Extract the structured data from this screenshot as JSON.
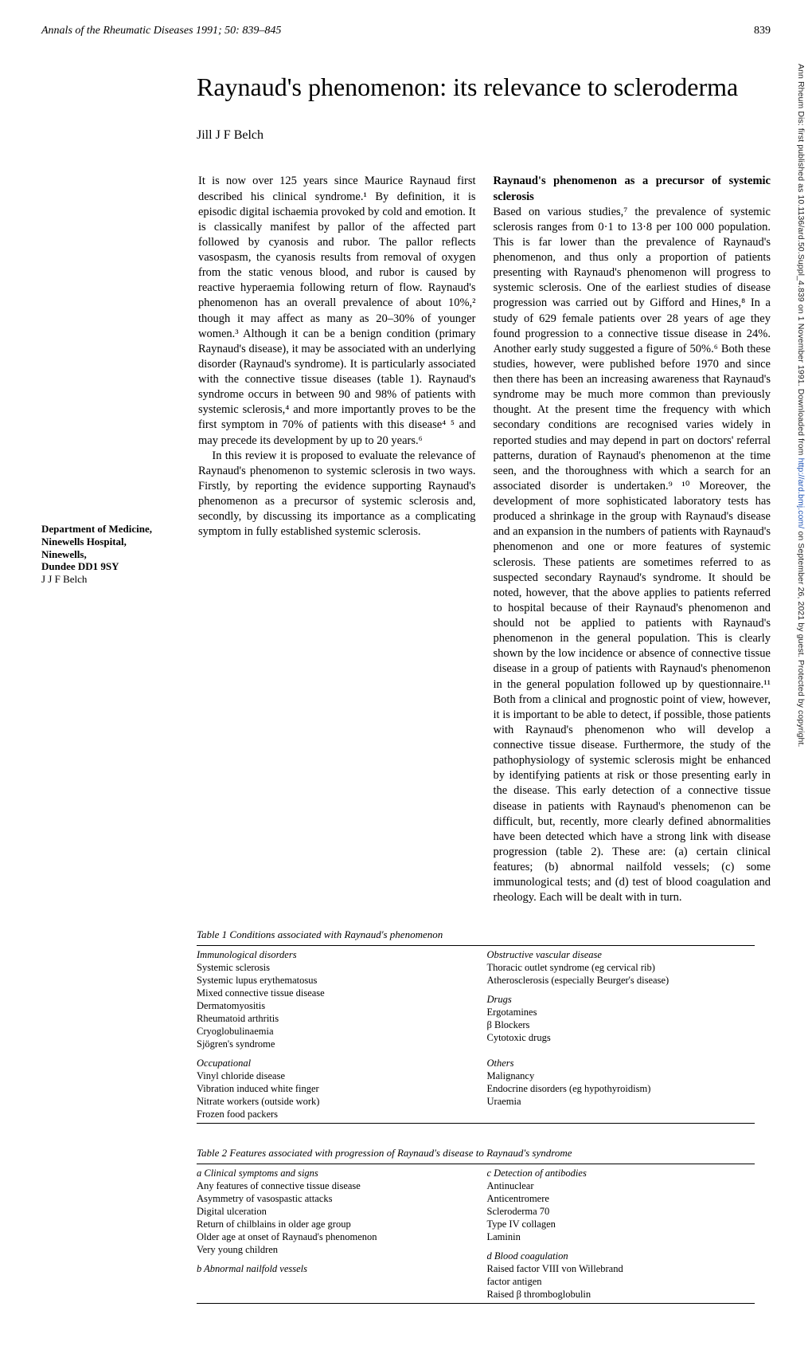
{
  "header": {
    "journal": "Annals of the Rheumatic Diseases 1991; 50: 839–845",
    "page": "839"
  },
  "title": "Raynaud's phenomenon: its relevance to scleroderma",
  "author": "Jill J F Belch",
  "sidebar": {
    "affil_l1": "Department of Medicine,",
    "affil_l2": "Ninewells Hospital,",
    "affil_l3": "Ninewells,",
    "affil_l4": "Dundee DD1 9SY",
    "affil_l5": "J J F Belch"
  },
  "left_col": {
    "intro": "It is now over 125 years since Maurice Raynaud first described his clinical syndrome.¹ By definition, it is episodic digital ischaemia provoked by cold and emotion. It is classically manifest by pallor of the affected part followed by cyanosis and rubor. The pallor reflects vasospasm, the cyanosis results from removal of oxygen from the static venous blood, and rubor is caused by reactive hyperaemia following return of flow. Raynaud's phenomenon has an overall prevalence of about 10%,² though it may affect as many as 20–30% of younger women.³ Although it can be a benign condition (primary Raynaud's disease), it may be associated with an underlying disorder (Raynaud's syndrome). It is particularly associated with the connective tissue diseases (table 1). Raynaud's syndrome occurs in between 90 and 98% of patients with systemic sclerosis,⁴ and more importantly proves to be the first symptom in 70% of patients with this disease⁴ ⁵ and may precede its development by up to 20 years.⁶",
    "intro2": "In this review it is proposed to evaluate the relevance of Raynaud's phenomenon to systemic sclerosis in two ways. Firstly, by reporting the evidence supporting Raynaud's phenomenon as a precursor of systemic sclerosis and, secondly, by discussing its importance as a complicating symptom in fully established systemic sclerosis."
  },
  "right_col": {
    "head1": "Raynaud's phenomenon as a precursor of systemic sclerosis",
    "p1": "Based on various studies,⁷ the prevalence of systemic sclerosis ranges from 0·1 to 13·8 per 100 000 population. This is far lower than the prevalence of Raynaud's phenomenon, and thus only a proportion of patients presenting with Raynaud's phenomenon will progress to systemic sclerosis. One of the earliest studies of disease progression was carried out by Gifford and Hines,⁸ In a study of 629 female patients over 28 years of age they found progression to a connective tissue disease in 24%. Another early study suggested a figure of 50%.⁶ Both these studies, however, were published before 1970 and since then there has been an increasing awareness that Raynaud's syndrome may be much more common than previously thought. At the present time the frequency with which secondary conditions are recognised varies widely in reported studies and may depend in part on doctors' referral patterns, duration of Raynaud's phenomenon at the time seen, and the thoroughness with which a search for an associated disorder is undertaken.⁹ ¹⁰ Moreover, the development of more sophisticated laboratory tests has produced a shrinkage in the group with Raynaud's disease and an expansion in the numbers of patients with Raynaud's phenomenon and one or more features of systemic sclerosis. These patients are sometimes referred to as suspected secondary Raynaud's syndrome. It should be noted, however, that the above applies to patients referred to hospital because of their Raynaud's phenomenon and should not be applied to patients with Raynaud's phenomenon in the general population. This is clearly shown by the low incidence or absence of connective tissue disease in a group of patients with Raynaud's phenomenon in the general population followed up by questionnaire.¹¹ Both from a clinical and prognostic point of view, however, it is important to be able to detect, if possible, those patients with Raynaud's phenomenon who will develop a connective tissue disease. Furthermore, the study of the pathophysiology of systemic sclerosis might be enhanced by identifying patients at risk or those presenting early in the disease. This early detection of a connective tissue disease in patients with Raynaud's phenomenon can be difficult, but, recently, more clearly defined abnormalities have been detected which have a strong link with disease progression (table 2). These are: (a) certain clinical features; (b) abnormal nailfold vessels; (c) some immunological tests; and (d) test of blood coagulation and rheology. Each will be dealt with in turn."
  },
  "table1": {
    "caption": "Table 1   Conditions associated with Raynaud's phenomenon",
    "col1": {
      "h1": "Immunological disorders",
      "i1": "Systemic sclerosis",
      "i2": "Systemic lupus erythematosus",
      "i3": "Mixed connective tissue disease",
      "i4": "Dermatomyositis",
      "i5": "Rheumatoid arthritis",
      "i6": "Cryoglobulinaemia",
      "i7": "Sjögren's syndrome",
      "h2": "Occupational",
      "j1": "Vinyl chloride disease",
      "j2": "Vibration induced white finger",
      "j3": "Nitrate workers (outside work)",
      "j4": "Frozen food packers"
    },
    "col2": {
      "h1": "Obstructive vascular disease",
      "i1": "Thoracic outlet syndrome (eg cervical rib)",
      "i2": "Atherosclerosis (especially Beurger's disease)",
      "h2": "Drugs",
      "j1": "Ergotamines",
      "j2": "β Blockers",
      "j3": "Cytotoxic drugs",
      "h3": "Others",
      "k1": "Malignancy",
      "k2": "Endocrine disorders (eg hypothyroidism)",
      "k3": "Uraemia"
    }
  },
  "table2": {
    "caption": "Table 2   Features associated with progression of Raynaud's disease to Raynaud's syndrome",
    "col1": {
      "h1": "a Clinical symptoms and signs",
      "i1": "Any features of connective tissue disease",
      "i2": "Asymmetry of vasospastic attacks",
      "i3": "Digital ulceration",
      "i4": "Return of chilblains in older age group",
      "i5": "Older age at onset of Raynaud's phenomenon",
      "i6": "Very young children",
      "h2": "b Abnormal nailfold vessels"
    },
    "col2": {
      "h1": "c Detection of antibodies",
      "i1": "Antinuclear",
      "i2": "Anticentromere",
      "i3": "Scleroderma 70",
      "i4": "Type IV collagen",
      "i5": "Laminin",
      "h2": "d Blood coagulation",
      "j1": "Raised factor VIII von Willebrand",
      "j2": "  factor antigen",
      "j3": "Raised β thromboglobulin"
    }
  },
  "watermark": {
    "pre": "Ann Rheum Dis: first published as 10.1136/ard.50.Suppl_4.839 on 1 November 1991. Downloaded from ",
    "link": "http://ard.bmj.com/",
    "post": " on September 26, 2021 by guest. Protected by copyright."
  }
}
